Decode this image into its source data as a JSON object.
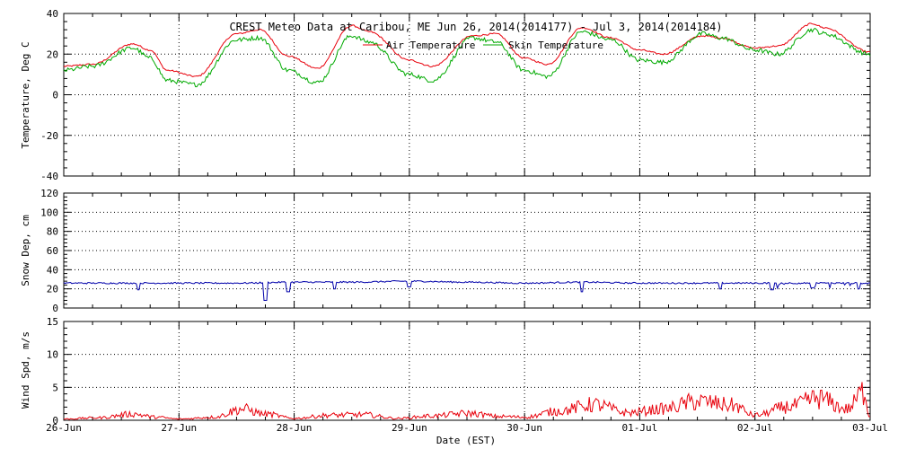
{
  "figure": {
    "title": "CREST Meteo Data at Caribou, ME   Jun 26, 2014(2014177) - Jul  3, 2014(2014184)",
    "xlabel": "Date (EST)"
  },
  "chart_data": [
    {
      "type": "line",
      "panel": "temperature",
      "ylabel": "Temperature, Deg C",
      "ylim": [
        -40,
        40
      ],
      "yticks": [
        "-40",
        "-20",
        "0",
        "20",
        "40"
      ],
      "grid": true,
      "legend_position": "top-center",
      "x_units": "days since 26-Jun 00:00 EST",
      "series": [
        {
          "name": "Air Temperature",
          "color": "#e8000b",
          "x": [
            0,
            0.25,
            0.6,
            0.75,
            0.9,
            1.15,
            1.5,
            1.7,
            1.95,
            2.2,
            2.5,
            2.65,
            3.0,
            3.2,
            3.55,
            3.75,
            4.0,
            4.2,
            4.5,
            4.75,
            5.0,
            5.2,
            5.55,
            5.7,
            6.0,
            6.2,
            6.5,
            6.6,
            7.0
          ],
          "y": [
            14,
            15,
            25,
            22,
            12,
            9,
            30,
            32,
            19,
            13,
            34,
            31,
            17,
            14,
            29,
            30,
            18,
            15,
            33,
            28,
            22,
            20,
            29,
            28,
            23,
            24,
            35,
            33,
            21
          ]
        },
        {
          "name": "Skin Temperature",
          "color": "#00aa00",
          "x": [
            0,
            0.25,
            0.6,
            0.75,
            0.9,
            1.15,
            1.5,
            1.7,
            1.95,
            2.2,
            2.5,
            2.65,
            3.0,
            3.2,
            3.55,
            3.75,
            4.0,
            4.2,
            4.5,
            4.75,
            5.0,
            5.2,
            5.55,
            5.7,
            6.0,
            6.2,
            6.5,
            6.6,
            7.0
          ],
          "y": [
            12,
            14,
            23,
            18,
            7,
            5,
            27,
            28,
            12,
            6,
            29,
            26,
            10,
            7,
            28,
            26,
            12,
            9,
            31,
            27,
            17,
            16,
            30,
            28,
            22,
            20,
            32,
            30,
            20
          ]
        }
      ]
    },
    {
      "type": "line",
      "panel": "snow_depth",
      "ylabel": "Snow Dep, cm",
      "ylim": [
        0,
        120
      ],
      "yticks": [
        "0",
        "20",
        "40",
        "60",
        "80",
        "100",
        "120"
      ],
      "grid": true,
      "x_units": "days since 26-Jun 00:00 EST",
      "series": [
        {
          "name": "",
          "color": "#0000aa",
          "x": [
            0,
            0.5,
            1.0,
            1.5,
            2.0,
            2.5,
            3.0,
            3.5,
            4.0,
            4.5,
            5.0,
            5.5,
            6.0,
            6.5,
            7.0
          ],
          "y": [
            26,
            26,
            26,
            26,
            27,
            27,
            28,
            27,
            26,
            27,
            26,
            26,
            26,
            26,
            26
          ],
          "dips": [
            [
              0.65,
              19
            ],
            [
              1.75,
              8
            ],
            [
              1.95,
              17
            ],
            [
              2.35,
              20
            ],
            [
              3.0,
              22
            ],
            [
              4.5,
              17
            ],
            [
              5.7,
              20
            ],
            [
              6.15,
              19
            ],
            [
              6.5,
              21
            ],
            [
              6.9,
              20
            ]
          ]
        }
      ]
    },
    {
      "type": "line",
      "panel": "wind_speed",
      "ylabel": "Wind Spd, m/s",
      "ylim": [
        0,
        15
      ],
      "yticks": [
        "0",
        "5",
        "10",
        "15"
      ],
      "grid": true,
      "x_units": "days since 26-Jun 00:00 EST",
      "xticks": [
        "26-Jun",
        "27-Jun",
        "28-Jun",
        "29-Jun",
        "30-Jun",
        "01-Jul",
        "02-Jul",
        "03-Jul"
      ],
      "series": [
        {
          "name": "",
          "color": "#e8000b",
          "x": [
            0,
            0.3,
            0.6,
            0.8,
            1.0,
            1.3,
            1.55,
            1.75,
            2.0,
            2.3,
            2.6,
            2.9,
            3.2,
            3.5,
            3.8,
            4.0,
            4.3,
            4.6,
            4.9,
            5.2,
            5.5,
            5.8,
            6.0,
            6.3,
            6.55,
            6.8,
            6.95,
            7.0
          ],
          "y": [
            0.2,
            0.4,
            1.0,
            0.5,
            0.2,
            0.5,
            1.8,
            1.0,
            0.3,
            0.8,
            0.9,
            0.3,
            0.7,
            1.1,
            0.6,
            0.5,
            1.5,
            2.5,
            1.2,
            1.8,
            3.0,
            2.4,
            0.8,
            2.2,
            3.5,
            1.8,
            4.6,
            0.5
          ]
        }
      ]
    }
  ]
}
